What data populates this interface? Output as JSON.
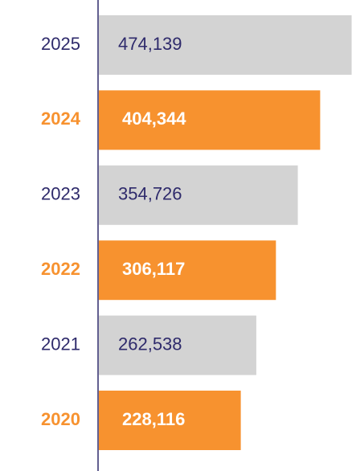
{
  "chart_data": {
    "type": "barh",
    "categories": [
      "2025",
      "2024",
      "2023",
      "2022",
      "2021",
      "2020"
    ],
    "values": [
      474139,
      404344,
      354726,
      306117,
      262538,
      228116
    ],
    "value_labels": [
      "474,139",
      "404,344",
      "354,726",
      "306,117",
      "262,538",
      "228,116"
    ],
    "colors": [
      "#d3d3d3",
      "#f7922f",
      "#d3d3d3",
      "#f7922f",
      "#d3d3d3",
      "#f7922f"
    ],
    "category_colors": [
      "#2e2a6b",
      "#f7922f",
      "#2e2a6b",
      "#f7922f",
      "#2e2a6b",
      "#f7922f"
    ],
    "value_label_colors": [
      "#2e2a6b",
      "#ffffff",
      "#2e2a6b",
      "#ffffff",
      "#2e2a6b",
      "#ffffff"
    ],
    "xlim": [
      -87000,
      475000
    ]
  }
}
